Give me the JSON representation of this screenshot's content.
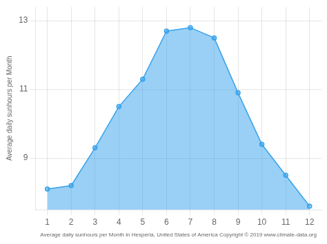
{
  "chart_data": {
    "type": "area",
    "x": [
      1,
      2,
      3,
      4,
      5,
      6,
      7,
      8,
      9,
      10,
      11,
      12
    ],
    "values": [
      8.1,
      8.2,
      9.3,
      10.5,
      11.3,
      12.7,
      12.8,
      12.5,
      10.9,
      9.4,
      8.5,
      7.6
    ],
    "ylabel": "Average daily sunhours per Month",
    "xlabel": "Average daily sunhours per Month in Hesperia, United States of America Copyright © 2019 www.climate-data.org",
    "xlim": [
      0.5,
      12.5
    ],
    "xticks": [
      1,
      2,
      3,
      4,
      5,
      6,
      7,
      8,
      9,
      10,
      11,
      12
    ],
    "ylim": [
      7.5,
      13.4
    ],
    "yticks": [
      9,
      11,
      13
    ],
    "marker": "circle",
    "grid": true
  }
}
